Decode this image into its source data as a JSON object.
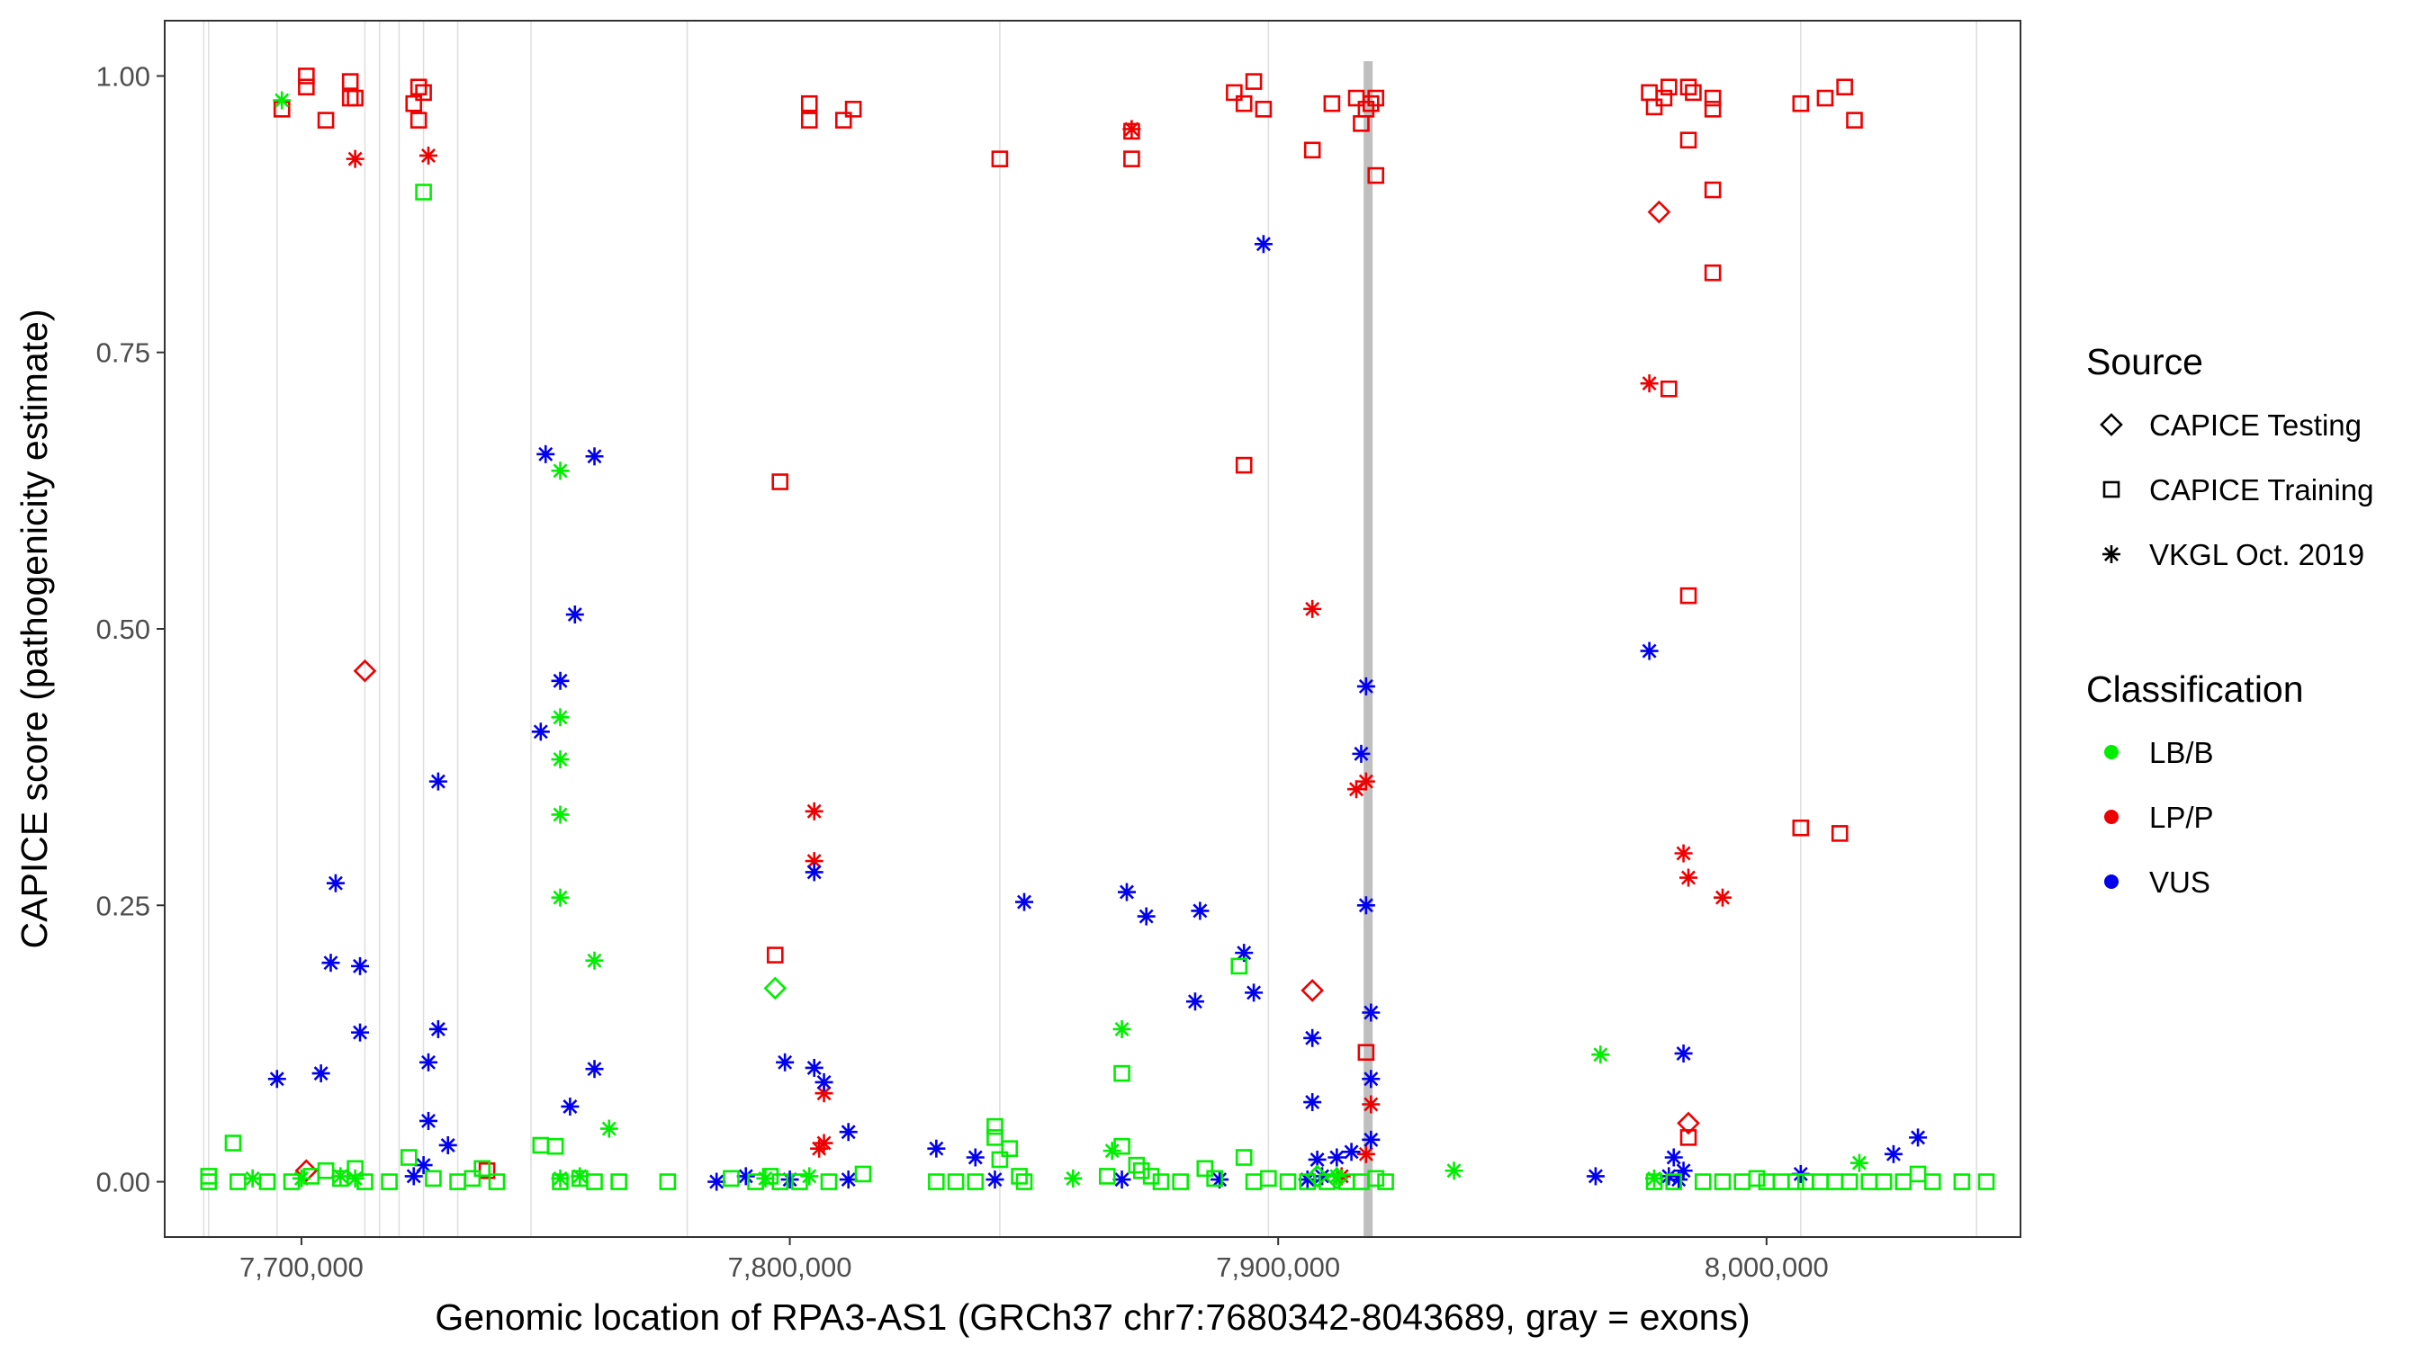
{
  "chart_data": {
    "type": "scatter",
    "title": "",
    "xlabel": "Genomic location of RPA3-AS1 (GRCh37 chr7:7680342-8043689, gray = exons)",
    "ylabel": "CAPICE score (pathogenicity estimate)",
    "xlim": [
      7672000,
      8052000
    ],
    "ylim": [
      -0.05,
      1.05
    ],
    "x_ticks": [
      7700000,
      7800000,
      7900000,
      8000000
    ],
    "x_tick_labels": [
      "7,700,000",
      "7,800,000",
      "7,900,000",
      "8,000,000"
    ],
    "y_ticks": [
      0,
      0.25,
      0.5,
      0.75,
      1
    ],
    "y_tick_labels": [
      "0.00",
      "0.25",
      "0.50",
      "0.75",
      "1.00"
    ],
    "grid": "vertical exon lines only",
    "exon_lines": [
      7680000,
      7681000,
      7695000,
      7713000,
      7716000,
      7720000,
      7725000,
      7732000,
      7747000,
      7779000,
      7843000,
      7898000,
      8007000,
      8043000
    ],
    "highlight_exon": [
      7917500,
      7919200
    ],
    "legend": {
      "position": "right",
      "source_title": "Source",
      "source_items": [
        {
          "label": "CAPICE Testing",
          "shape": "diamond"
        },
        {
          "label": "CAPICE Training",
          "shape": "square"
        },
        {
          "label": "VKGL Oct. 2019",
          "shape": "asterisk"
        }
      ],
      "class_title": "Classification",
      "class_items": [
        {
          "label": "LB/B",
          "color": "#00ee00"
        },
        {
          "label": "LP/P",
          "color": "#ee0000"
        },
        {
          "label": "VUS",
          "color": "#0000ee"
        }
      ]
    },
    "colors": {
      "LB/B": "#00ee00",
      "LP/P": "#ee0000",
      "VUS": "#0000ee"
    },
    "series": [
      {
        "name": "LP/P – CAPICE Training",
        "class": "LP/P",
        "shape": "square",
        "points": [
          [
            7701000,
            0.99
          ],
          [
            7701000,
            1.0
          ],
          [
            7696000,
            0.97
          ],
          [
            7705000,
            0.96
          ],
          [
            7710000,
            0.995
          ],
          [
            7710000,
            0.98
          ],
          [
            7711000,
            0.98
          ],
          [
            7723000,
            0.975
          ],
          [
            7724000,
            0.99
          ],
          [
            7725000,
            0.985
          ],
          [
            7724000,
            0.96
          ],
          [
            7738000,
            0.01
          ],
          [
            7797000,
            0.205
          ],
          [
            7798000,
            0.633
          ],
          [
            7804000,
            0.975
          ],
          [
            7804000,
            0.96
          ],
          [
            7811000,
            0.96
          ],
          [
            7813000,
            0.97
          ],
          [
            7843000,
            0.925
          ],
          [
            7870000,
            0.95
          ],
          [
            7870000,
            0.925
          ],
          [
            7891000,
            0.985
          ],
          [
            7893000,
            0.975
          ],
          [
            7895000,
            0.995
          ],
          [
            7897000,
            0.97
          ],
          [
            7893000,
            0.648
          ],
          [
            7907000,
            0.933
          ],
          [
            7911000,
            0.975
          ],
          [
            7916000,
            0.98
          ],
          [
            7917000,
            0.957
          ],
          [
            7918000,
            0.97
          ],
          [
            7919000,
            0.975
          ],
          [
            7920000,
            0.98
          ],
          [
            7920000,
            0.91
          ],
          [
            7918000,
            0.117
          ],
          [
            7976000,
            0.985
          ],
          [
            7977000,
            0.972
          ],
          [
            7979000,
            0.98
          ],
          [
            7980000,
            0.99
          ],
          [
            7984000,
            0.99
          ],
          [
            7985000,
            0.985
          ],
          [
            7984000,
            0.942
          ],
          [
            7989000,
            0.98
          ],
          [
            7989000,
            0.97
          ],
          [
            7989000,
            0.897
          ],
          [
            7989000,
            0.822
          ],
          [
            7980000,
            0.717
          ],
          [
            7984000,
            0.53
          ],
          [
            7984000,
            0.04
          ],
          [
            8007000,
            0.975
          ],
          [
            8012000,
            0.98
          ],
          [
            8016000,
            0.99
          ],
          [
            8018000,
            0.96
          ],
          [
            8007000,
            0.32
          ],
          [
            8015000,
            0.315
          ]
        ]
      },
      {
        "name": "LP/P – VKGL Oct. 2019",
        "class": "LP/P",
        "shape": "asterisk",
        "points": [
          [
            7711000,
            0.925
          ],
          [
            7726000,
            0.928
          ],
          [
            7805000,
            0.335
          ],
          [
            7805000,
            0.29
          ],
          [
            7806000,
            0.03
          ],
          [
            7807000,
            0.035
          ],
          [
            7807000,
            0.08
          ],
          [
            7870000,
            0.952
          ],
          [
            7907000,
            0.518
          ],
          [
            7916000,
            0.355
          ],
          [
            7918000,
            0.362
          ],
          [
            7919000,
            0.07
          ],
          [
            7913000,
            0.005
          ],
          [
            7918000,
            0.025
          ],
          [
            7976000,
            0.722
          ],
          [
            7983000,
            0.297
          ],
          [
            7984000,
            0.275
          ],
          [
            7991000,
            0.257
          ]
        ]
      },
      {
        "name": "LP/P – CAPICE Testing",
        "class": "LP/P",
        "shape": "diamond",
        "points": [
          [
            7701000,
            0.01
          ],
          [
            7713000,
            0.462
          ],
          [
            7907000,
            0.173
          ],
          [
            7978000,
            0.877
          ],
          [
            7984000,
            0.053
          ]
        ]
      },
      {
        "name": "VUS – VKGL Oct. 2019",
        "class": "VUS",
        "shape": "asterisk",
        "points": [
          [
            7695000,
            0.093
          ],
          [
            7704000,
            0.098
          ],
          [
            7706000,
            0.198
          ],
          [
            7707000,
            0.27
          ],
          [
            7712000,
            0.195
          ],
          [
            7712000,
            0.135
          ],
          [
            7726000,
            0.108
          ],
          [
            7726000,
            0.055
          ],
          [
            7728000,
            0.138
          ],
          [
            7728000,
            0.362
          ],
          [
            7730000,
            0.033
          ],
          [
            7723000,
            0.005
          ],
          [
            7725000,
            0.015
          ],
          [
            7750000,
            0.658
          ],
          [
            7760000,
            0.656
          ],
          [
            7749000,
            0.407
          ],
          [
            7753000,
            0.453
          ],
          [
            7756000,
            0.513
          ],
          [
            7755000,
            0.068
          ],
          [
            7760000,
            0.102
          ],
          [
            7799000,
            0.108
          ],
          [
            7805000,
            0.28
          ],
          [
            7805000,
            0.103
          ],
          [
            7807000,
            0.09
          ],
          [
            7812000,
            0.045
          ],
          [
            7848000,
            0.253
          ],
          [
            7830000,
            0.03
          ],
          [
            7838000,
            0.022
          ],
          [
            7869000,
            0.262
          ],
          [
            7873000,
            0.24
          ],
          [
            7884000,
            0.245
          ],
          [
            7883000,
            0.163
          ],
          [
            7893000,
            0.207
          ],
          [
            7895000,
            0.171
          ],
          [
            7897000,
            0.848
          ],
          [
            7907000,
            0.13
          ],
          [
            7907000,
            0.072
          ],
          [
            7918000,
            0.448
          ],
          [
            7917000,
            0.387
          ],
          [
            7918000,
            0.25
          ],
          [
            7919000,
            0.153
          ],
          [
            7919000,
            0.093
          ],
          [
            7919000,
            0.038
          ],
          [
            7908000,
            0.02
          ],
          [
            7912000,
            0.022
          ],
          [
            7915000,
            0.027
          ],
          [
            7976000,
            0.48
          ],
          [
            7983000,
            0.116
          ],
          [
            7981000,
            0.022
          ],
          [
            7965000,
            0.005
          ],
          [
            7980000,
            0.005
          ],
          [
            7982000,
            0.002
          ],
          [
            7983000,
            0.01
          ],
          [
            8007000,
            0.007
          ],
          [
            8026000,
            0.025
          ],
          [
            8031000,
            0.04
          ],
          [
            7785000,
            0.0
          ],
          [
            7791000,
            0.005
          ],
          [
            7800000,
            0.002
          ],
          [
            7812000,
            0.002
          ],
          [
            7842000,
            0.002
          ],
          [
            7868000,
            0.002
          ],
          [
            7888000,
            0.002
          ],
          [
            7906000,
            0.002
          ],
          [
            7909000,
            0.005
          ]
        ]
      },
      {
        "name": "LB/B – VKGL Oct. 2019",
        "class": "LB/B",
        "shape": "asterisk",
        "points": [
          [
            7696000,
            0.978
          ],
          [
            7753000,
            0.643
          ],
          [
            7753000,
            0.42
          ],
          [
            7753000,
            0.382
          ],
          [
            7753000,
            0.332
          ],
          [
            7753000,
            0.257
          ],
          [
            7760000,
            0.2
          ],
          [
            7763000,
            0.048
          ],
          [
            7866000,
            0.028
          ],
          [
            7868000,
            0.138
          ],
          [
            7936000,
            0.01
          ],
          [
            7966000,
            0.115
          ],
          [
            8019000,
            0.017
          ],
          [
            7690000,
            0.003
          ],
          [
            7700000,
            0.003
          ],
          [
            7708000,
            0.005
          ],
          [
            7711000,
            0.003
          ],
          [
            7753000,
            0.003
          ],
          [
            7757000,
            0.005
          ],
          [
            7795000,
            0.003
          ],
          [
            7804000,
            0.005
          ],
          [
            7858000,
            0.003
          ],
          [
            7912000,
            0.005
          ],
          [
            7977000,
            0.003
          ]
        ]
      },
      {
        "name": "LB/B – CAPICE Training",
        "class": "LB/B",
        "shape": "square",
        "points": [
          [
            7725000,
            0.895
          ],
          [
            7686000,
            0.035
          ],
          [
            7681000,
            0.0
          ],
          [
            7681000,
            0.005
          ],
          [
            7687000,
            0.0
          ],
          [
            7693000,
            0.0
          ],
          [
            7698000,
            0.0
          ],
          [
            7702000,
            0.005
          ],
          [
            7705000,
            0.01
          ],
          [
            7708000,
            0.003
          ],
          [
            7711000,
            0.012
          ],
          [
            7713000,
            0.0
          ],
          [
            7718000,
            0.0
          ],
          [
            7722000,
            0.022
          ],
          [
            7727000,
            0.003
          ],
          [
            7732000,
            0.0
          ],
          [
            7735000,
            0.003
          ],
          [
            7737000,
            0.012
          ],
          [
            7740000,
            0.0
          ],
          [
            7749000,
            0.033
          ],
          [
            7752000,
            0.032
          ],
          [
            7753000,
            0.0
          ],
          [
            7757000,
            0.003
          ],
          [
            7760000,
            0.0
          ],
          [
            7765000,
            0.0
          ],
          [
            7775000,
            0.0
          ],
          [
            7788000,
            0.003
          ],
          [
            7793000,
            0.0
          ],
          [
            7796000,
            0.005
          ],
          [
            7798000,
            0.0
          ],
          [
            7802000,
            0.0
          ],
          [
            7808000,
            0.0
          ],
          [
            7815000,
            0.007
          ],
          [
            7830000,
            0.0
          ],
          [
            7834000,
            0.0
          ],
          [
            7838000,
            0.0
          ],
          [
            7842000,
            0.05
          ],
          [
            7842000,
            0.04
          ],
          [
            7843000,
            0.02
          ],
          [
            7845000,
            0.03
          ],
          [
            7847000,
            0.005
          ],
          [
            7848000,
            0.0
          ],
          [
            7865000,
            0.005
          ],
          [
            7868000,
            0.098
          ],
          [
            7868000,
            0.032
          ],
          [
            7871000,
            0.015
          ],
          [
            7872000,
            0.01
          ],
          [
            7874000,
            0.005
          ],
          [
            7876000,
            0.0
          ],
          [
            7880000,
            0.0
          ],
          [
            7885000,
            0.012
          ],
          [
            7887000,
            0.003
          ],
          [
            7892000,
            0.195
          ],
          [
            7893000,
            0.022
          ],
          [
            7895000,
            0.0
          ],
          [
            7898000,
            0.003
          ],
          [
            7902000,
            0.0
          ],
          [
            7906000,
            0.0
          ],
          [
            7910000,
            0.0
          ],
          [
            7914000,
            0.0
          ],
          [
            7917000,
            0.0
          ],
          [
            7920000,
            0.003
          ],
          [
            7922000,
            0.0
          ],
          [
            7977000,
            0.0
          ],
          [
            7981000,
            0.0
          ],
          [
            7987000,
            0.0
          ],
          [
            7991000,
            0.0
          ],
          [
            7995000,
            0.0
          ],
          [
            7998000,
            0.003
          ],
          [
            8000000,
            0.0
          ],
          [
            8003000,
            0.0
          ],
          [
            8006000,
            0.0
          ],
          [
            8008000,
            0.0
          ],
          [
            8011000,
            0.0
          ],
          [
            8014000,
            0.0
          ],
          [
            8017000,
            0.0
          ],
          [
            8021000,
            0.0
          ],
          [
            8024000,
            0.0
          ],
          [
            8028000,
            0.0
          ],
          [
            8031000,
            0.007
          ],
          [
            8034000,
            0.0
          ],
          [
            8040000,
            0.0
          ],
          [
            8045000,
            0.0
          ]
        ]
      },
      {
        "name": "LB/B – CAPICE Testing",
        "class": "LB/B",
        "shape": "diamond",
        "points": [
          [
            7797000,
            0.175
          ],
          [
            7908000,
            0.005
          ],
          [
            7912000,
            0.003
          ]
        ]
      }
    ]
  }
}
